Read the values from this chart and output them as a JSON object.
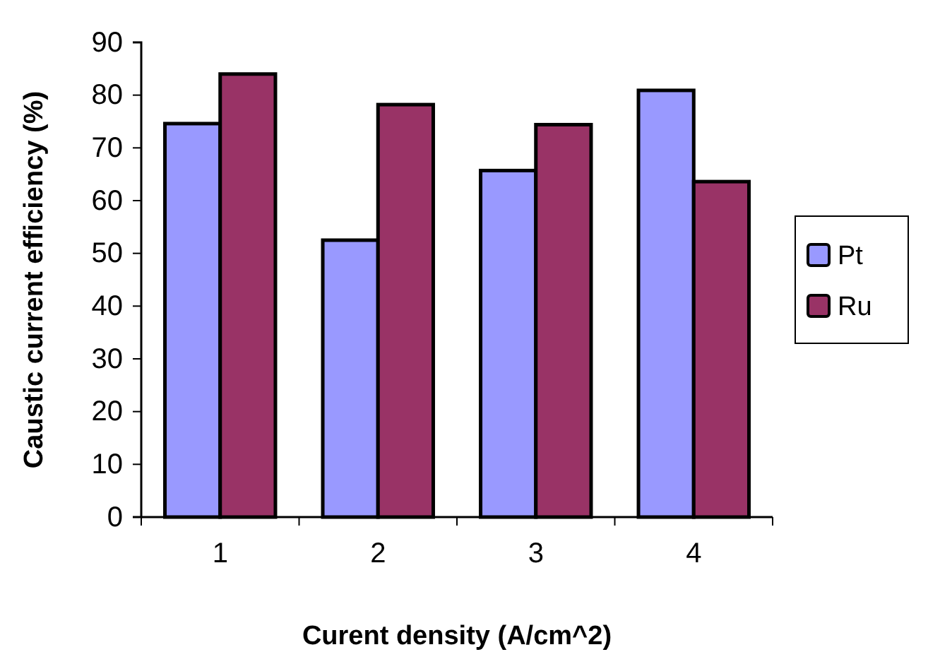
{
  "chart_data": {
    "type": "bar",
    "xlabel": "Curent density (A/cm^2)",
    "ylabel": "Caustic current efficiency (%)",
    "categories": [
      "1",
      "2",
      "3",
      "4"
    ],
    "series": [
      {
        "name": "Pt",
        "color": "#9999ff",
        "values": [
          74.6,
          52.5,
          65.7,
          80.9
        ]
      },
      {
        "name": "Ru",
        "color": "#993366",
        "values": [
          84.0,
          78.2,
          74.4,
          63.6
        ]
      }
    ],
    "ylim": [
      0,
      90
    ],
    "yticks": [
      0,
      10,
      20,
      30,
      40,
      50,
      60,
      70,
      80,
      90
    ],
    "grid": false,
    "legend": "right"
  }
}
